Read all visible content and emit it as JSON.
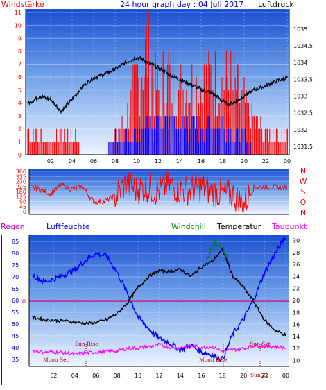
{
  "chart_data": [
    {
      "type": "line",
      "title": "24 hour graph day : 04 Juli 2017",
      "left_label": "Windstärke",
      "right_label": "Luftdruck",
      "x_ticks": [
        "02",
        "04",
        "06",
        "08",
        "10",
        "12",
        "14",
        "16",
        "18",
        "20",
        "22",
        "00"
      ],
      "y_left_ticks": [
        "0",
        "1",
        "2",
        "3",
        "4",
        "5",
        "6",
        "7",
        "8",
        "9",
        "10",
        "11"
      ],
      "y_right_ticks": [
        "1031.5",
        "1032",
        "1032.5",
        "1033",
        "1033.5",
        "1034",
        "1034.5",
        "1035"
      ],
      "ylim_left": [
        0,
        11
      ],
      "ylim_right": [
        1031.25,
        1035.6
      ],
      "series": [
        {
          "role": "pressure",
          "color": "#000000",
          "x": [
            0,
            1,
            2,
            3,
            4,
            5,
            6,
            7,
            8,
            9,
            10,
            10.5,
            11,
            12,
            13,
            14,
            15,
            16,
            17,
            18,
            18.5,
            19,
            20,
            21,
            22,
            23,
            24
          ],
          "y": [
            1032.8,
            1033.0,
            1032.9,
            1032.55,
            1032.9,
            1033.3,
            1033.55,
            1033.65,
            1033.8,
            1034.0,
            1034.15,
            1034.1,
            1034.0,
            1033.85,
            1033.65,
            1033.5,
            1033.35,
            1033.2,
            1033.1,
            1032.85,
            1032.75,
            1032.8,
            1033.0,
            1033.2,
            1033.3,
            1033.45,
            1033.55
          ]
        },
        {
          "role": "wind_gust",
          "color": "#ff0000",
          "x": [
            0,
            1,
            2,
            3,
            4,
            5,
            6,
            7,
            8,
            9,
            10,
            11,
            12,
            13,
            14,
            15,
            16,
            17,
            18,
            19,
            20,
            21,
            22,
            23,
            24
          ],
          "y": [
            2,
            2,
            1,
            2,
            2,
            0,
            0,
            0,
            2,
            3,
            7,
            10,
            6,
            8,
            6,
            7,
            6,
            8,
            7,
            7,
            5,
            3,
            2,
            2,
            2
          ]
        },
        {
          "role": "wind_avg",
          "color": "#0000ff",
          "x": [
            0,
            1,
            2,
            3,
            4,
            5,
            6,
            7,
            8,
            9,
            10,
            11,
            12,
            13,
            14,
            15,
            16,
            17,
            18,
            19,
            20,
            21,
            22,
            23,
            24
          ],
          "y": [
            0,
            0,
            0,
            0,
            0,
            0,
            0,
            0,
            2,
            2,
            2,
            3,
            3,
            3,
            3,
            3,
            3,
            3,
            3,
            2,
            2,
            0,
            0,
            0,
            0
          ]
        }
      ]
    },
    {
      "type": "line",
      "left_ticks": [
        "0",
        "45",
        "90",
        "135",
        "180",
        "225",
        "270",
        "315",
        "360"
      ],
      "right_labels": [
        "N",
        "W",
        "S",
        "O",
        "N"
      ],
      "ylim": [
        0,
        360
      ],
      "series": [
        {
          "role": "wind_direction",
          "color": "#ff0000",
          "x": [
            0,
            1,
            2,
            3,
            4,
            5,
            6,
            7,
            8,
            9,
            10,
            11,
            12,
            13,
            14,
            15,
            16,
            17,
            18,
            19,
            20,
            21,
            22,
            23,
            24
          ],
          "y": [
            220,
            200,
            160,
            240,
            200,
            220,
            90,
            90,
            140,
            250,
            200,
            220,
            180,
            240,
            200,
            190,
            220,
            180,
            160,
            150,
            60,
            220,
            220,
            220,
            210
          ]
        }
      ]
    },
    {
      "type": "line",
      "labels": {
        "rain": "Regen",
        "humidity": "Luftfeuchte",
        "windchill": "Windchill",
        "temperature": "Temperatur",
        "dewpoint": "Taupunkt"
      },
      "x_ticks": [
        "02",
        "04",
        "06",
        "08",
        "10",
        "12",
        "14",
        "16",
        "18",
        "20",
        "22",
        "00"
      ],
      "y_left_ticks": [
        "35",
        "40",
        "45",
        "50",
        "55",
        "60",
        "65",
        "70",
        "75",
        "80",
        "85"
      ],
      "y_right_ticks": [
        "10",
        "12",
        "14",
        "16",
        "18",
        "20",
        "22",
        "24",
        "26",
        "28",
        "30"
      ],
      "rain_value": "0",
      "ylim_left": [
        32,
        88
      ],
      "ylim_right": [
        9,
        31
      ],
      "annotations": [
        "Moon Set",
        "Sun Rise",
        "Moon Rise",
        "Sun Set",
        "Sun 22"
      ],
      "series": [
        {
          "role": "temperature",
          "color": "#000000",
          "x": [
            0,
            1,
            2,
            3,
            4,
            5,
            6,
            7,
            8,
            9,
            10,
            11,
            12,
            13,
            14,
            15,
            16,
            17,
            18,
            19,
            20,
            21,
            22,
            23,
            24
          ],
          "y": [
            17.2,
            16.8,
            16.7,
            16.6,
            16.4,
            16.2,
            16.3,
            16.8,
            17.8,
            19.6,
            22.2,
            24.0,
            25.0,
            24.8,
            25.2,
            24.0,
            25.6,
            26.5,
            28.5,
            24.0,
            22.2,
            19.7,
            16.7,
            15.0,
            14.2
          ]
        },
        {
          "role": "humidity",
          "color": "#0000ff",
          "x": [
            0,
            1,
            2,
            3,
            4,
            5,
            6,
            7,
            8,
            9,
            10,
            11,
            12,
            13,
            14,
            15,
            16,
            17,
            18,
            19,
            20,
            21,
            22,
            23,
            24
          ],
          "y": [
            71,
            68,
            69,
            71,
            73,
            77,
            80,
            79,
            72,
            63,
            53,
            48,
            44,
            42,
            39,
            41,
            38,
            37,
            35,
            46,
            52,
            61,
            72,
            80,
            87
          ]
        },
        {
          "role": "dewpoint",
          "color": "#ff00ff",
          "x": [
            0,
            1,
            2,
            3,
            4,
            5,
            6,
            7,
            8,
            9,
            10,
            11,
            12,
            13,
            14,
            15,
            16,
            17,
            18,
            19,
            20,
            21,
            22,
            23,
            24
          ],
          "y": [
            11.7,
            11.4,
            11.4,
            11.3,
            11.0,
            11.2,
            11.4,
            11.5,
            11.6,
            12.0,
            12.1,
            12.3,
            12.6,
            12.2,
            12.1,
            12.5,
            12.2,
            12.3,
            11.5,
            11.8,
            12.0,
            12.5,
            12.4,
            12.3,
            12.1
          ]
        },
        {
          "role": "windchill",
          "color": "#008000",
          "x": [
            16.5,
            17,
            17.5,
            18,
            18.5
          ],
          "y": [
            26,
            29,
            29.5,
            29,
            27
          ]
        }
      ]
    }
  ],
  "colors": {
    "bg_top": "#1a4fd0",
    "bg_bottom": "#e8f2ff",
    "gust": "#ff0000",
    "avg": "#0000ff",
    "pressure": "#000000",
    "humidity": "#0000ff",
    "dewpoint": "#ff00ff",
    "windchill": "#008000",
    "temperature": "#000000",
    "rain_line": "#cc0066"
  }
}
